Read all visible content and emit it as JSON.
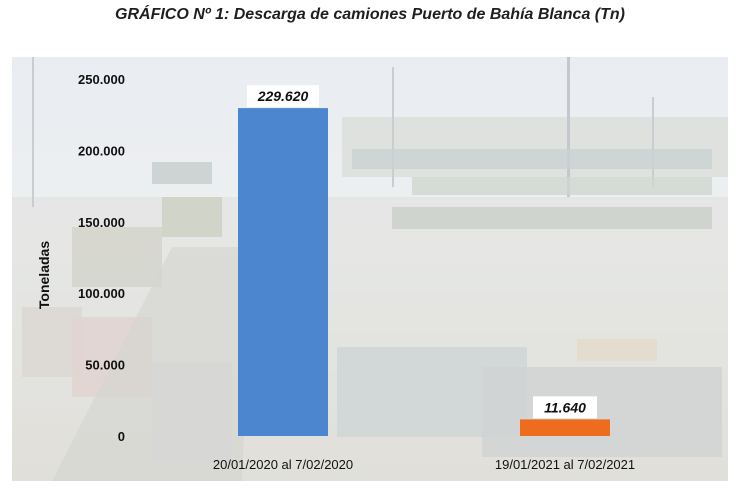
{
  "title": "GRÁFICO Nº 1: Descarga de camiones Puerto de Bahía Blanca (Tn)",
  "chart_data": {
    "type": "bar",
    "categories": [
      "20/01/2020 al 7/02/2020",
      "19/01/2021 al 7/02/2021"
    ],
    "values": [
      229620,
      11640
    ],
    "data_labels": [
      "229.620",
      "11.640"
    ],
    "bar_colors": [
      "#4b86cf",
      "#ee6c1e"
    ],
    "ylabel": "Toneladas",
    "xlabel": "",
    "ylim": [
      0,
      250000
    ],
    "yticks": [
      0,
      50000,
      100000,
      150000,
      200000,
      250000
    ],
    "ytick_labels": [
      "0",
      "50.000",
      "100.000",
      "150.000",
      "200.000",
      "250.000"
    ],
    "grid": false,
    "legend": "none",
    "background": "photo of trucks queued at port (washed out)"
  }
}
